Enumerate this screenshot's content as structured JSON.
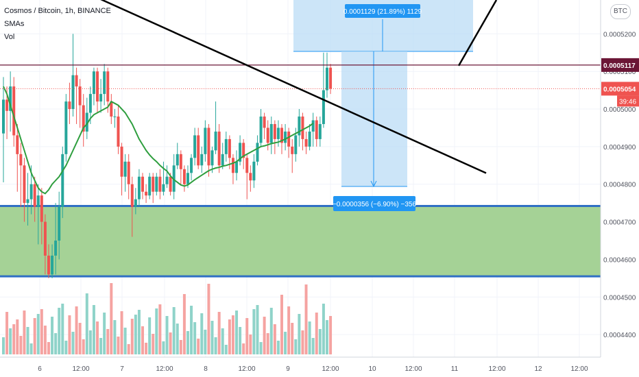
{
  "header": {
    "title": "Cosmos / Bitcoin, 1h, BINANCE",
    "indicator_1": "SMAs",
    "indicator_2": "Vol",
    "currency_button": "BTC"
  },
  "price_axis": {
    "ticks": [
      "0.0005200",
      "0.0005100",
      "0.0005000",
      "0.0004900",
      "0.0004800",
      "0.0004700",
      "0.0004600",
      "0.0004500",
      "0.0004400"
    ],
    "tick_values": [
      0.00052,
      0.00051,
      0.0005,
      0.00049,
      0.00048,
      0.00047,
      0.00046,
      0.00045,
      0.00044
    ],
    "resistance_label": "0.0005117",
    "resistance_value": 0.0005117,
    "last_price_label": "0.0005054",
    "last_price_value": 0.0005054,
    "countdown": "39:46"
  },
  "time_axis": {
    "labels": [
      "6",
      "12:00",
      "7",
      "12:00",
      "8",
      "12:00",
      "9",
      "12:00",
      "10",
      "12:00",
      "11",
      "12:00",
      "12",
      "12:00"
    ]
  },
  "measure_up": {
    "label": "0.0001129 (21.89%) 1129"
  },
  "measure_down": {
    "label": "−0.0000356 (−6.90%) −356"
  },
  "colors": {
    "up": "#26a69a",
    "down": "#ef5350",
    "sma": "#2e9e3e",
    "zone_fill": "#a5d296",
    "zone_border": "#2f6fc4",
    "resistance": "#6b1636",
    "measure_fill": "#bbdcf5",
    "measure_label": "#2196f3"
  },
  "chart_data": {
    "type": "candlestick",
    "symbol": "Cosmos / Bitcoin",
    "interval": "1h",
    "exchange": "BINANCE",
    "ylim": [
      0.000434,
      0.000529
    ],
    "support_zone": [
      0.0004555,
      0.0004742
    ],
    "resistance_line": 0.0005117,
    "last_price": 0.0005054,
    "measure_up_target": 0.0005153,
    "measure_down_target": 0.0004798,
    "trendline_points": [
      [
        0,
        0.000531
      ],
      [
        117,
        0.0004815
      ]
    ],
    "trendline2_points": [
      [
        111,
        0.0005114
      ],
      [
        120,
        0.000531
      ]
    ],
    "candles": [
      [
        0.0004935,
        0.0005025,
        0.0005085,
        0.0004805
      ],
      [
        0.0005025,
        0.0004995,
        0.000506,
        0.000492
      ],
      [
        0.0004995,
        0.000506,
        0.00051,
        0.000494
      ],
      [
        0.000506,
        0.000493,
        0.0005085,
        0.00049
      ],
      [
        0.000493,
        0.000488,
        0.000496,
        0.000478
      ],
      [
        0.000488,
        0.000485,
        0.000491,
        0.000474
      ],
      [
        0.000485,
        0.000475,
        0.000487,
        0.00047
      ],
      [
        0.000475,
        0.000476,
        0.000483,
        0.000469
      ],
      [
        0.000476,
        0.00048,
        0.000485,
        0.000472
      ],
      [
        0.00048,
        0.000474,
        0.000482,
        0.00047
      ],
      [
        0.000474,
        0.000477,
        0.00048,
        0.000464
      ],
      [
        0.000477,
        0.00047,
        0.000479,
        0.000464
      ],
      [
        0.00047,
        0.000461,
        0.000472,
        0.000456
      ],
      [
        0.000461,
        0.000456,
        0.000464,
        0.000455
      ],
      [
        0.000456,
        0.000461,
        0.000464,
        0.000455
      ],
      [
        0.000461,
        0.000465,
        0.000475,
        0.000456
      ],
      [
        0.000465,
        0.000474,
        0.000478,
        0.00046
      ],
      [
        0.000474,
        0.000488,
        0.00049,
        0.000471
      ],
      [
        0.000488,
        0.000502,
        0.000504,
        0.000486
      ],
      [
        0.000502,
        0.0005,
        0.000507,
        0.000496
      ],
      [
        0.0005,
        0.000509,
        0.00052,
        0.000498
      ],
      [
        0.000509,
        0.000506,
        0.000511,
        0.000496
      ],
      [
        0.000506,
        0.000501,
        0.000508,
        0.000495
      ],
      [
        0.000501,
        0.000494,
        0.000504,
        0.00049
      ],
      [
        0.000494,
        0.000499,
        0.000503,
        0.000492
      ],
      [
        0.000499,
        0.000504,
        0.000506,
        0.000496
      ],
      [
        0.000504,
        0.00051,
        0.000511,
        0.000501
      ],
      [
        0.00051,
        0.000502,
        0.000511,
        0.000499
      ],
      [
        0.000502,
        0.000504,
        0.000508,
        0.000499
      ],
      [
        0.000504,
        0.00051,
        0.000512,
        0.000501
      ],
      [
        0.00051,
        0.000502,
        0.000511,
        0.000499
      ],
      [
        0.000502,
        0.000498,
        0.000504,
        0.000496
      ],
      [
        0.000498,
        0.000498,
        0.0005,
        0.000495
      ],
      [
        0.000498,
        0.00049,
        0.000501,
        0.000488
      ],
      [
        0.00049,
        0.000482,
        0.000491,
        0.000477
      ],
      [
        0.000482,
        0.000486,
        0.000488,
        0.000478
      ],
      [
        0.000486,
        0.00048,
        0.000488,
        0.000476
      ],
      [
        0.00048,
        0.000474,
        0.000482,
        0.000466
      ],
      [
        0.000474,
        0.000476,
        0.000479,
        0.000472
      ],
      [
        0.000476,
        0.000482,
        0.000484,
        0.000474
      ],
      [
        0.000482,
        0.000478,
        0.000483,
        0.000476
      ],
      [
        0.000478,
        0.000477,
        0.00048,
        0.000475
      ],
      [
        0.000477,
        0.000482,
        0.000483,
        0.000476
      ],
      [
        0.000482,
        0.000478,
        0.000483,
        0.000475
      ],
      [
        0.000478,
        0.000482,
        0.000483,
        0.000477
      ],
      [
        0.000482,
        0.000478,
        0.000484,
        0.000476
      ],
      [
        0.000478,
        0.00048,
        0.000486,
        0.000477
      ],
      [
        0.00048,
        0.000482,
        0.000485,
        0.000479
      ],
      [
        0.000482,
        0.000478,
        0.000483,
        0.000477
      ],
      [
        0.000478,
        0.000485,
        0.000488,
        0.000476
      ],
      [
        0.000485,
        0.000488,
        0.000491,
        0.000484
      ],
      [
        0.000488,
        0.000484,
        0.000489,
        0.00048
      ],
      [
        0.000484,
        0.00048,
        0.000485,
        0.000478
      ],
      [
        0.00048,
        0.000483,
        0.000485,
        0.000479
      ],
      [
        0.000483,
        0.000487,
        0.000488,
        0.000481
      ],
      [
        0.000487,
        0.000493,
        0.000495,
        0.000485
      ],
      [
        0.000493,
        0.000485,
        0.000495,
        0.000484
      ],
      [
        0.000485,
        0.000488,
        0.00049,
        0.000483
      ],
      [
        0.000488,
        0.000495,
        0.000497,
        0.000486
      ],
      [
        0.000495,
        0.000485,
        0.000496,
        0.000482
      ],
      [
        0.000485,
        0.000489,
        0.00049,
        0.000483
      ],
      [
        0.000489,
        0.000494,
        0.000502,
        0.000488
      ],
      [
        0.000494,
        0.000485,
        0.000496,
        0.000483
      ],
      [
        0.000485,
        0.000488,
        0.000491,
        0.000484
      ],
      [
        0.000488,
        0.000492,
        0.000494,
        0.000486
      ],
      [
        0.000492,
        0.000487,
        0.000493,
        0.000484
      ],
      [
        0.000487,
        0.000483,
        0.000488,
        0.00048
      ],
      [
        0.000483,
        0.000486,
        0.000489,
        0.000481
      ],
      [
        0.000486,
        0.000491,
        0.000493,
        0.000485
      ],
      [
        0.000491,
        0.000487,
        0.000492,
        0.000484
      ],
      [
        0.000487,
        0.000483,
        0.000488,
        0.000476
      ],
      [
        0.000483,
        0.000481,
        0.000485,
        0.000478
      ],
      [
        0.000481,
        0.000486,
        0.000488,
        0.000479
      ],
      [
        0.000486,
        0.000491,
        0.000493,
        0.000485
      ],
      [
        0.000491,
        0.000498,
        0.0005,
        0.00049
      ],
      [
        0.000498,
        0.000495,
        0.000499,
        0.000492
      ],
      [
        0.000495,
        0.000491,
        0.000497,
        0.000489
      ],
      [
        0.000491,
        0.000496,
        0.000498,
        0.000488
      ],
      [
        0.000496,
        0.000492,
        0.000497,
        0.000488
      ],
      [
        0.000492,
        0.000495,
        0.000497,
        0.00049
      ],
      [
        0.000495,
        0.000491,
        0.000496,
        0.000488
      ],
      [
        0.000491,
        0.000494,
        0.000496,
        0.000489
      ],
      [
        0.000494,
        0.00049,
        0.000495,
        0.000487
      ],
      [
        0.00049,
        0.000488,
        0.000492,
        0.000483
      ],
      [
        0.000488,
        0.000493,
        0.000495,
        0.000486
      ],
      [
        0.000493,
        0.000498,
        0.0005,
        0.00049
      ],
      [
        0.000498,
        0.000492,
        0.000499,
        0.000489
      ],
      [
        0.000492,
        0.00049,
        0.000494,
        0.000488
      ],
      [
        0.00049,
        0.000494,
        0.000496,
        0.000489
      ],
      [
        0.000494,
        0.000497,
        0.000499,
        0.00049
      ],
      [
        0.000497,
        0.000492,
        0.000498,
        0.00049
      ],
      [
        0.000492,
        0.000496,
        0.000498,
        0.00049
      ],
      [
        0.000496,
        0.000505,
        0.000515,
        0.000495
      ],
      [
        0.000505,
        0.000511,
        0.000515,
        0.000503
      ],
      [
        0.000511,
        0.0005054,
        0.000512,
        0.000504
      ]
    ],
    "sma": [
      0.000506,
      0.000504,
      0.000501,
      0.000498,
      0.000495,
      0.000492,
      0.000489,
      0.000486,
      0.000483,
      0.000481,
      0.000479,
      0.000478,
      0.0004775,
      0.0004785,
      0.00048,
      0.000481,
      0.000482,
      0.0004835,
      0.000485,
      0.000487,
      0.000489,
      0.000491,
      0.000493,
      0.000495,
      0.000496,
      0.0004975,
      0.0004985,
      0.000499,
      0.0004995,
      0.0005,
      0.0005005,
      0.000502,
      0.0005015,
      0.000501,
      0.0005,
      0.000499,
      0.0004975,
      0.000496,
      0.000494,
      0.000492,
      0.0004905,
      0.000489,
      0.0004878,
      0.0004868,
      0.000486,
      0.000485,
      0.0004842,
      0.0004835,
      0.0004822,
      0.0004812,
      0.0004805,
      0.0004798,
      0.0004795,
      0.0004798,
      0.0004805,
      0.0004812,
      0.0004818,
      0.0004824,
      0.000483,
      0.0004836,
      0.000484,
      0.0004843,
      0.0004845,
      0.0004848,
      0.000485,
      0.0004853,
      0.0004856,
      0.000486,
      0.0004868,
      0.0004875,
      0.000488,
      0.0004885,
      0.000489,
      0.0004895,
      0.00049,
      0.0004902,
      0.0004905,
      0.0004908,
      0.000491,
      0.0004912,
      0.0004916,
      0.000492,
      0.0004925,
      0.000493,
      0.0004935,
      0.000494,
      0.0004945,
      0.000495,
      0.0004955,
      0.0004962
    ]
  }
}
